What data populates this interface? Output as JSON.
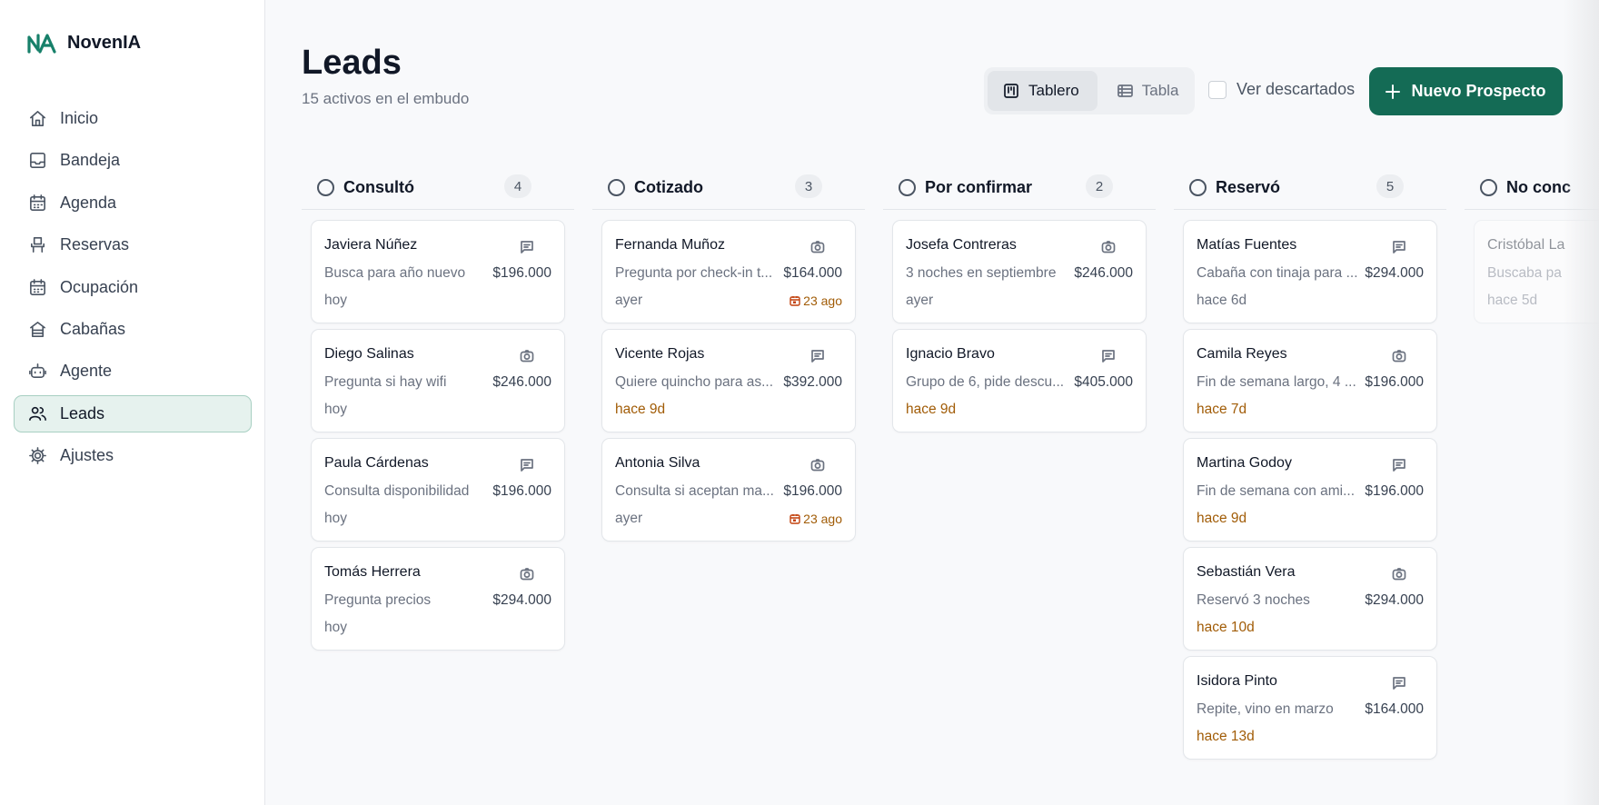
{
  "brand": "NovenIA",
  "nav": [
    {
      "label": "Inicio",
      "icon": "home"
    },
    {
      "label": "Bandeja",
      "icon": "inbox"
    },
    {
      "label": "Agenda",
      "icon": "calendar"
    },
    {
      "label": "Reservas",
      "icon": "chair"
    },
    {
      "label": "Ocupación",
      "icon": "calendar"
    },
    {
      "label": "Cabañas",
      "icon": "cabin"
    },
    {
      "label": "Agente",
      "icon": "bot"
    },
    {
      "label": "Leads",
      "icon": "users",
      "active": true
    },
    {
      "label": "Ajustes",
      "icon": "gear"
    }
  ],
  "header": {
    "title": "Leads",
    "subtitle": "15 activos en el embudo"
  },
  "toolbar": {
    "views": [
      {
        "label": "Tablero",
        "icon": "board",
        "active": true
      },
      {
        "label": "Tabla",
        "icon": "table"
      }
    ],
    "filter": {
      "label": "Ver descartados",
      "checked": false
    },
    "button": "Nuevo Prospecto"
  },
  "columns": [
    {
      "title": "Consultó",
      "count": 4,
      "cards": [
        {
          "name": "Javiera Núñez",
          "channel": "chat",
          "note": "Busca para año nuevo",
          "amount": "$196.000",
          "time": "hoy"
        },
        {
          "name": "Diego Salinas",
          "channel": "camera",
          "note": "Pregunta si hay wifi",
          "amount": "$246.000",
          "time": "hoy"
        },
        {
          "name": "Paula Cárdenas",
          "channel": "chat",
          "note": "Consulta disponibilidad",
          "amount": "$196.000",
          "time": "hoy"
        },
        {
          "name": "Tomás Herrera",
          "channel": "camera",
          "note": "Pregunta precios",
          "amount": "$294.000",
          "time": "hoy"
        }
      ]
    },
    {
      "title": "Cotizado",
      "count": 3,
      "cards": [
        {
          "name": "Fernanda Muñoz",
          "channel": "camera",
          "note": "Pregunta por check-in t...",
          "amount": "$164.000",
          "time": "ayer",
          "due": "23 ago"
        },
        {
          "name": "Vicente Rojas",
          "channel": "chat",
          "note": "Quiere quincho para as...",
          "amount": "$392.000",
          "time": "hace 9d",
          "late": true
        },
        {
          "name": "Antonia Silva",
          "channel": "camera",
          "note": "Consulta si aceptan ma...",
          "amount": "$196.000",
          "time": "ayer",
          "due": "23 ago"
        }
      ]
    },
    {
      "title": "Por confirmar",
      "count": 2,
      "cards": [
        {
          "name": "Josefa Contreras",
          "channel": "camera",
          "note": "3 noches en septiembre",
          "amount": "$246.000",
          "time": "ayer"
        },
        {
          "name": "Ignacio Bravo",
          "channel": "chat",
          "note": "Grupo de 6, pide descu...",
          "amount": "$405.000",
          "time": "hace 9d",
          "late": true
        }
      ]
    },
    {
      "title": "Reservó",
      "count": 5,
      "cards": [
        {
          "name": "Matías Fuentes",
          "channel": "chat",
          "note": "Cabaña con tinaja para ...",
          "amount": "$294.000",
          "time": "hace 6d"
        },
        {
          "name": "Camila Reyes",
          "channel": "camera",
          "note": "Fin de semana largo, 4 ...",
          "amount": "$196.000",
          "time": "hace 7d",
          "late": true
        },
        {
          "name": "Martina Godoy",
          "channel": "chat",
          "note": "Fin de semana con ami...",
          "amount": "$196.000",
          "time": "hace 9d",
          "late": true
        },
        {
          "name": "Sebastián Vera",
          "channel": "camera",
          "note": "Reservó 3 noches",
          "amount": "$294.000",
          "time": "hace 10d",
          "late": true
        },
        {
          "name": "Isidora Pinto",
          "channel": "chat",
          "note": "Repite, vino en marzo",
          "amount": "$164.000",
          "time": "hace 13d",
          "late": true
        }
      ]
    },
    {
      "title": "No conc",
      "muted": true,
      "cards": [
        {
          "name": "Cristóbal La",
          "note": "Buscaba pa",
          "time": "hace 5d"
        }
      ]
    }
  ]
}
